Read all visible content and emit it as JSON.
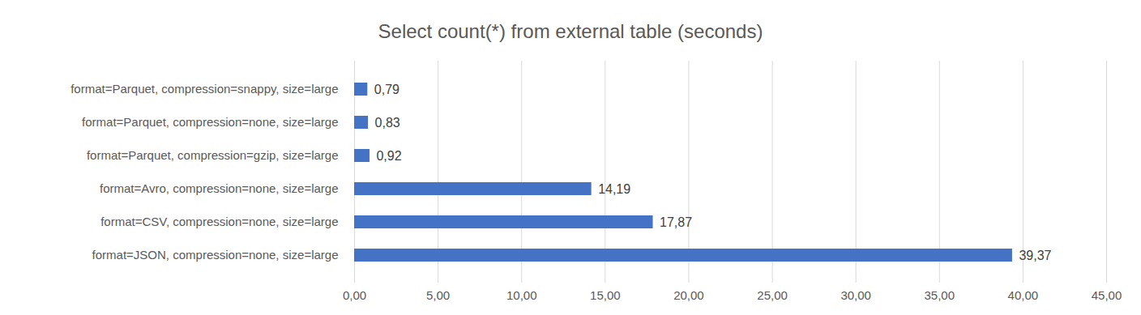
{
  "chart_data": {
    "type": "bar",
    "title": "Select count(*) from external table (seconds)",
    "orientation": "horizontal",
    "categories": [
      "format=Parquet, compression=snappy, size=large",
      "format=Parquet, compression=none, size=large",
      "format=Parquet, compression=gzip, size=large",
      "format=Avro, compression=none, size=large",
      "format=CSV, compression=none, size=large",
      "format=JSON, compression=none, size=large"
    ],
    "values": [
      0.79,
      0.83,
      0.92,
      14.19,
      17.87,
      39.37
    ],
    "value_labels": [
      "0,79",
      "0,83",
      "0,92",
      "14,19",
      "17,87",
      "39,37"
    ],
    "color": "#4472c4",
    "xlim": [
      0,
      45
    ],
    "xticks": [
      {
        "value": 0,
        "label": "0,00"
      },
      {
        "value": 5,
        "label": "5,00"
      },
      {
        "value": 10,
        "label": "10,00"
      },
      {
        "value": 15,
        "label": "15,00"
      },
      {
        "value": 20,
        "label": "20,00"
      },
      {
        "value": 25,
        "label": "25,00"
      },
      {
        "value": 30,
        "label": "30,00"
      },
      {
        "value": 35,
        "label": "35,00"
      },
      {
        "value": 40,
        "label": "40,00"
      },
      {
        "value": 45,
        "label": "45,00"
      }
    ],
    "grid": true,
    "data_labels": true
  }
}
